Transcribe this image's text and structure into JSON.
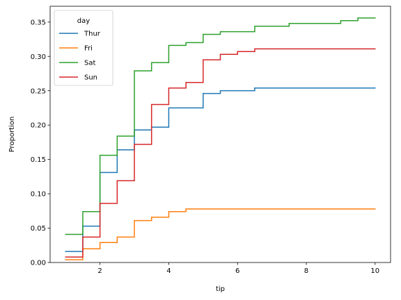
{
  "chart_data": {
    "type": "line",
    "drawstyle": "steps-post",
    "xlabel": "tip",
    "ylabel": "Proportion",
    "xlim": [
      0.55,
      10.45
    ],
    "ylim": [
      0.0,
      0.373
    ],
    "xticks": [
      2,
      4,
      6,
      8,
      10
    ],
    "xtick_labels": [
      "2",
      "4",
      "6",
      "8",
      "10"
    ],
    "yticks": [
      0.0,
      0.05,
      0.1,
      0.15,
      0.2,
      0.25,
      0.3,
      0.35
    ],
    "ytick_labels": [
      "0.00",
      "0.05",
      "0.10",
      "0.15",
      "0.20",
      "0.25",
      "0.30",
      "0.35"
    ],
    "grid": false,
    "legend": {
      "title": "day",
      "placement": "top-left"
    },
    "series": [
      {
        "name": "Thur",
        "color": "#1f77b4",
        "x": [
          1.0,
          1.5,
          2.0,
          2.5,
          3.0,
          3.5,
          4.0,
          5.0,
          5.5,
          6.5,
          10.0
        ],
        "y": [
          0.016,
          0.053,
          0.131,
          0.164,
          0.193,
          0.197,
          0.225,
          0.246,
          0.25,
          0.254,
          0.254
        ]
      },
      {
        "name": "Fri",
        "color": "#ff7f0e",
        "x": [
          1.0,
          1.5,
          2.0,
          2.5,
          3.0,
          3.5,
          4.0,
          4.5,
          10.0
        ],
        "y": [
          0.004,
          0.02,
          0.029,
          0.037,
          0.061,
          0.066,
          0.074,
          0.078,
          0.078
        ]
      },
      {
        "name": "Sat",
        "color": "#2ca02c",
        "x": [
          1.0,
          1.5,
          2.0,
          2.5,
          3.0,
          3.5,
          4.0,
          4.5,
          5.0,
          5.5,
          6.5,
          7.5,
          9.0,
          9.5,
          10.0
        ],
        "y": [
          0.041,
          0.074,
          0.156,
          0.184,
          0.279,
          0.291,
          0.316,
          0.32,
          0.332,
          0.336,
          0.344,
          0.348,
          0.352,
          0.356,
          0.356
        ]
      },
      {
        "name": "Sun",
        "color": "#d62728",
        "x": [
          1.0,
          1.5,
          2.0,
          2.5,
          3.0,
          3.5,
          4.0,
          4.5,
          5.0,
          5.5,
          6.0,
          6.5,
          10.0
        ],
        "y": [
          0.008,
          0.037,
          0.086,
          0.119,
          0.172,
          0.23,
          0.254,
          0.262,
          0.295,
          0.303,
          0.307,
          0.311,
          0.311
        ]
      }
    ]
  }
}
